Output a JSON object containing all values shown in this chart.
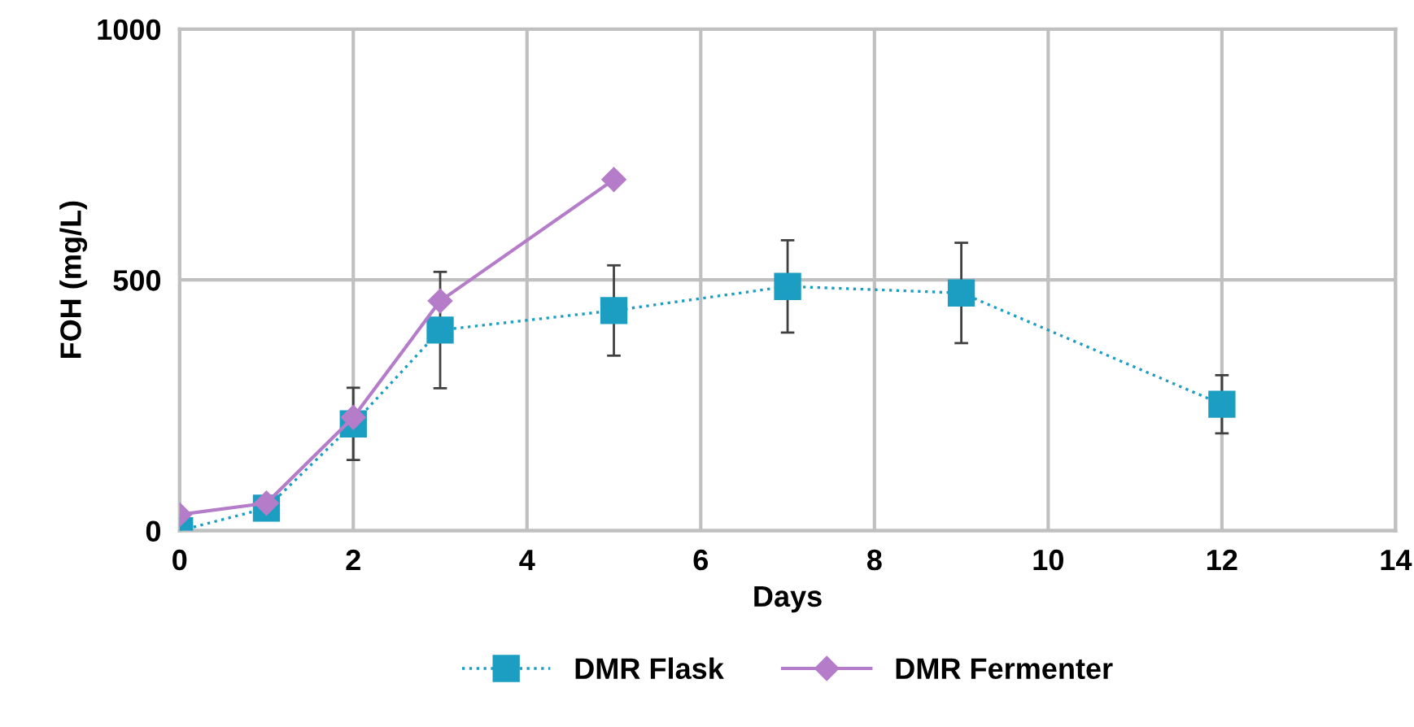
{
  "chart_data": {
    "type": "line",
    "xlabel": "Days",
    "ylabel": "FOH (mg/L)",
    "xlim": [
      0,
      14
    ],
    "xticks": [
      0,
      2,
      4,
      6,
      8,
      10,
      12,
      14
    ],
    "ylim": [
      0,
      1000
    ],
    "yticks": [
      0,
      500,
      1000
    ],
    "grid": true,
    "legend": "bottom",
    "series": [
      {
        "name": "DMR Flask",
        "color": "#1b9ec2",
        "marker": "square",
        "line_style": "dotted",
        "x": [
          0,
          1,
          2,
          3,
          5,
          7,
          9,
          12
        ],
        "values": [
          0,
          45,
          213,
          400,
          439,
          487,
          474,
          252
        ],
        "errors": [
          null,
          null,
          72,
          116,
          90,
          92,
          100,
          58
        ]
      },
      {
        "name": "DMR Fermenter",
        "color": "#b57cc9",
        "marker": "diamond",
        "line_style": "solid",
        "x": [
          0,
          1,
          2,
          3,
          5
        ],
        "values": [
          32,
          55,
          226,
          458,
          700
        ]
      }
    ]
  }
}
